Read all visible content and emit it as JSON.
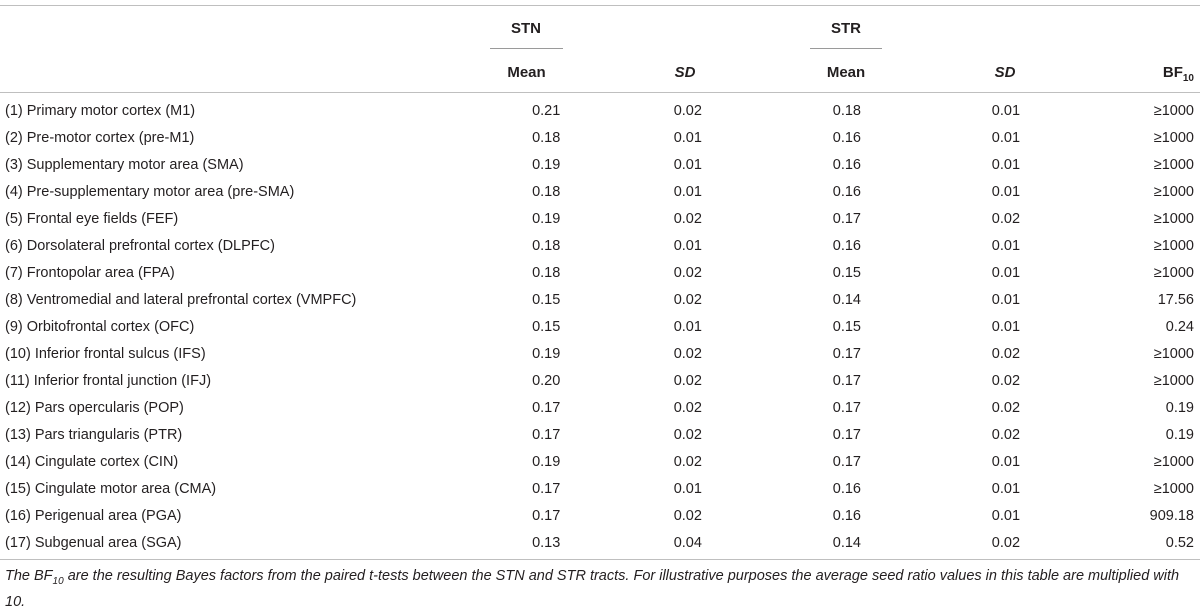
{
  "header": {
    "group_stn": "STN",
    "group_str": "STR",
    "mean_label": "Mean",
    "sd_label": "SD",
    "bf_label": "BF",
    "bf_sub": "10"
  },
  "rows": [
    {
      "region": "(1) Primary motor cortex (M1)",
      "stn_mean": "0.21",
      "stn_sd": "0.02",
      "str_mean": "0.18",
      "str_sd": "0.01",
      "bf10": "≥1000"
    },
    {
      "region": "(2) Pre-motor cortex (pre-M1)",
      "stn_mean": "0.18",
      "stn_sd": "0.01",
      "str_mean": "0.16",
      "str_sd": "0.01",
      "bf10": "≥1000"
    },
    {
      "region": "(3) Supplementary motor area (SMA)",
      "stn_mean": "0.19",
      "stn_sd": "0.01",
      "str_mean": "0.16",
      "str_sd": "0.01",
      "bf10": "≥1000"
    },
    {
      "region": "(4) Pre-supplementary motor area (pre-SMA)",
      "stn_mean": "0.18",
      "stn_sd": "0.01",
      "str_mean": "0.16",
      "str_sd": "0.01",
      "bf10": "≥1000"
    },
    {
      "region": "(5) Frontal eye fields (FEF)",
      "stn_mean": "0.19",
      "stn_sd": "0.02",
      "str_mean": "0.17",
      "str_sd": "0.02",
      "bf10": "≥1000"
    },
    {
      "region": "(6) Dorsolateral prefrontal cortex (DLPFC)",
      "stn_mean": "0.18",
      "stn_sd": "0.01",
      "str_mean": "0.16",
      "str_sd": "0.01",
      "bf10": "≥1000"
    },
    {
      "region": "(7) Frontopolar area (FPA)",
      "stn_mean": "0.18",
      "stn_sd": "0.02",
      "str_mean": "0.15",
      "str_sd": "0.01",
      "bf10": "≥1000"
    },
    {
      "region": "(8) Ventromedial and lateral prefrontal cortex (VMPFC)",
      "stn_mean": "0.15",
      "stn_sd": "0.02",
      "str_mean": "0.14",
      "str_sd": "0.01",
      "bf10": "17.56"
    },
    {
      "region": "(9) Orbitofrontal cortex (OFC)",
      "stn_mean": "0.15",
      "stn_sd": "0.01",
      "str_mean": "0.15",
      "str_sd": "0.01",
      "bf10": "0.24"
    },
    {
      "region": "(10) Inferior frontal sulcus (IFS)",
      "stn_mean": "0.19",
      "stn_sd": "0.02",
      "str_mean": "0.17",
      "str_sd": "0.02",
      "bf10": "≥1000"
    },
    {
      "region": "(11) Inferior frontal junction (IFJ)",
      "stn_mean": "0.20",
      "stn_sd": "0.02",
      "str_mean": "0.17",
      "str_sd": "0.02",
      "bf10": "≥1000"
    },
    {
      "region": "(12) Pars opercularis (POP)",
      "stn_mean": "0.17",
      "stn_sd": "0.02",
      "str_mean": "0.17",
      "str_sd": "0.02",
      "bf10": "0.19"
    },
    {
      "region": "(13) Pars triangularis (PTR)",
      "stn_mean": "0.17",
      "stn_sd": "0.02",
      "str_mean": "0.17",
      "str_sd": "0.02",
      "bf10": "0.19"
    },
    {
      "region": "(14) Cingulate cortex (CIN)",
      "stn_mean": "0.19",
      "stn_sd": "0.02",
      "str_mean": "0.17",
      "str_sd": "0.01",
      "bf10": "≥1000"
    },
    {
      "region": "(15) Cingulate motor area (CMA)",
      "stn_mean": "0.17",
      "stn_sd": "0.01",
      "str_mean": "0.16",
      "str_sd": "0.01",
      "bf10": "≥1000"
    },
    {
      "region": "(16) Perigenual area (PGA)",
      "stn_mean": "0.17",
      "stn_sd": "0.02",
      "str_mean": "0.16",
      "str_sd": "0.01",
      "bf10": "909.18"
    },
    {
      "region": "(17) Subgenual area (SGA)",
      "stn_mean": "0.13",
      "stn_sd": "0.04",
      "str_mean": "0.14",
      "str_sd": "0.02",
      "bf10": "0.52"
    }
  ],
  "footnote": "The BF10 are the resulting Bayes factors from the paired t-tests between the STN and STR tracts. For illustrative purposes the average seed ratio values in this table are multiplied with 10."
}
